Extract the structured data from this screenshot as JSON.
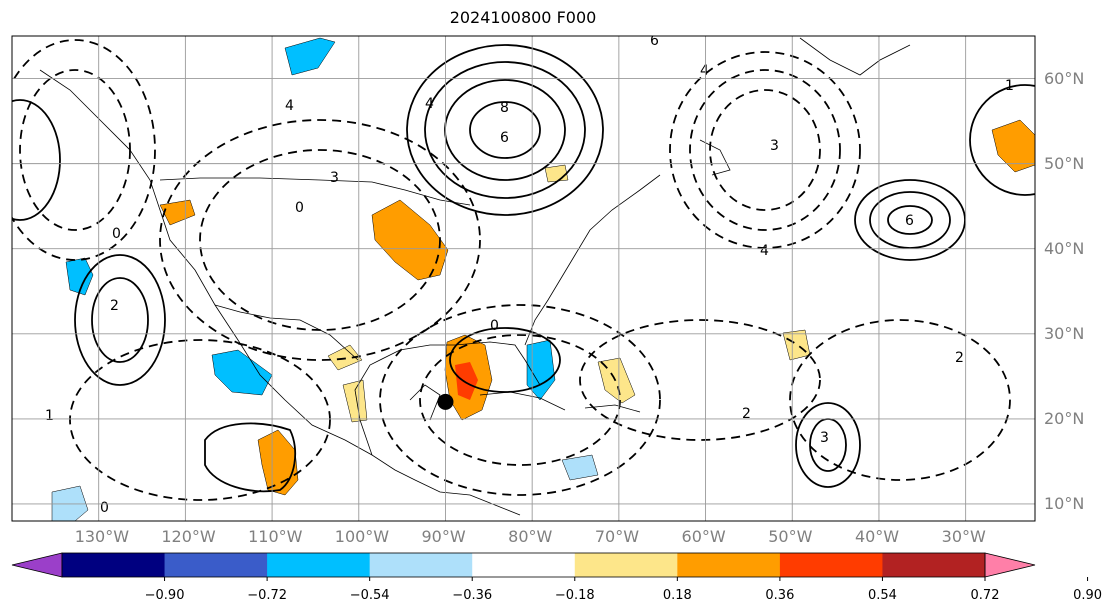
{
  "title": "2024100800 F000",
  "map": {
    "projection": "plate-carree",
    "lon_range": [
      -140,
      -22
    ],
    "lat_range": [
      8,
      65
    ],
    "grid": true,
    "contour_levels_labeled": [
      "-8",
      "-6",
      "-4",
      "-3",
      "-2",
      "-1",
      "0",
      "1",
      "2",
      "3",
      "4",
      "6",
      "8"
    ],
    "marker": {
      "name": "storm-center",
      "lon": -90,
      "lat": 22
    }
  },
  "lat_labels": [
    "60°N",
    "50°N",
    "40°N",
    "30°N",
    "20°N",
    "10°N"
  ],
  "lon_labels": [
    "130°W",
    "120°W",
    "110°W",
    "100°W",
    "90°W",
    "80°W",
    "70°W",
    "60°W",
    "50°W",
    "40°W",
    "30°W"
  ],
  "colorbar": {
    "labels": [
      "−0.90",
      "−0.72",
      "−0.54",
      "−0.36",
      "−0.18",
      "0.18",
      "0.36",
      "0.54",
      "0.72",
      "0.90"
    ],
    "under_color": "#9b3fc9",
    "over_color": "#ff7fa8",
    "colors": [
      "#9b3fc9",
      "#000080",
      "#3a5cc9",
      "#00bfff",
      "#aee0fa",
      "#ffffff",
      "#fde68a",
      "#ff9d00",
      "#ff3c00",
      "#b22222",
      "#ff7fa8"
    ]
  }
}
